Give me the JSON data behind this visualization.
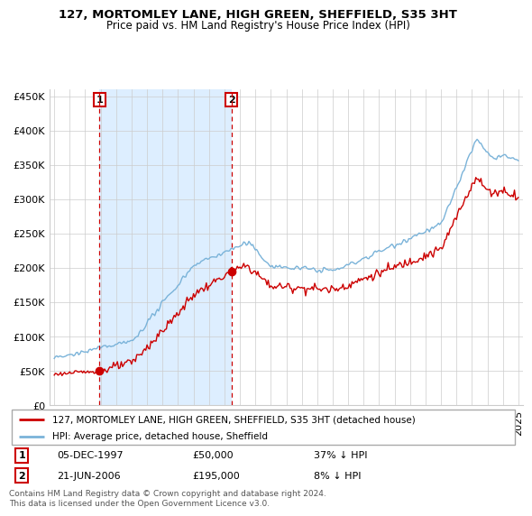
{
  "title": "127, MORTOMLEY LANE, HIGH GREEN, SHEFFIELD, S35 3HT",
  "subtitle": "Price paid vs. HM Land Registry's House Price Index (HPI)",
  "legend_property": "127, MORTOMLEY LANE, HIGH GREEN, SHEFFIELD, S35 3HT (detached house)",
  "legend_hpi": "HPI: Average price, detached house, Sheffield",
  "transaction1_date": "05-DEC-1997",
  "transaction1_price": 50000,
  "transaction1_note": "37% ↓ HPI",
  "transaction2_date": "21-JUN-2006",
  "transaction2_price": 195000,
  "transaction2_note": "8% ↓ HPI",
  "footer": "Contains HM Land Registry data © Crown copyright and database right 2024.\nThis data is licensed under the Open Government Licence v3.0.",
  "property_color": "#cc0000",
  "hpi_color": "#7ab3d9",
  "shade_color": "#ddeeff",
  "vline_color": "#cc0000",
  "ylim": [
    0,
    460000
  ],
  "yticks": [
    0,
    50000,
    100000,
    150000,
    200000,
    250000,
    300000,
    350000,
    400000,
    450000
  ],
  "xlim_left": 1994.7,
  "xlim_right": 2025.3,
  "t1_x": 1997.92,
  "t1_y": 50000,
  "t2_x": 2006.46,
  "t2_y": 195000
}
